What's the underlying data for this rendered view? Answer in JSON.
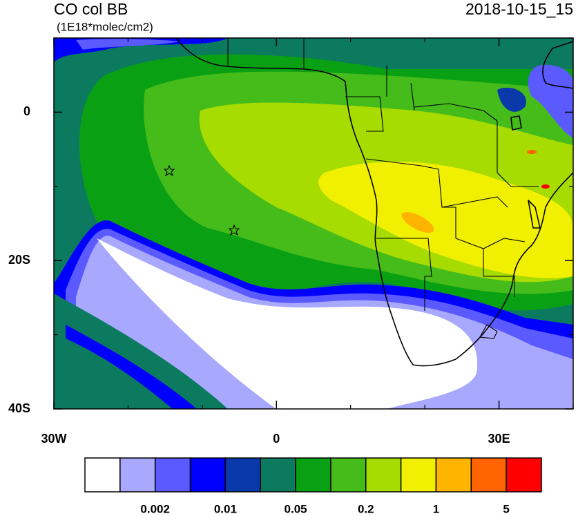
{
  "chart_data": {
    "type": "contour-map",
    "title": "CO col BB",
    "subtitle": "(1E18*molec/cm2)",
    "date": "2018-10-15_15",
    "xlim": [
      -30,
      40
    ],
    "ylim": [
      -40,
      10
    ],
    "xticks": [
      {
        "value": -30,
        "label": "30W"
      },
      0,
      {
        "value": 30,
        "label": "30E"
      }
    ],
    "yticks": [
      {
        "value": -40,
        "label": "40S"
      },
      {
        "value": -20,
        "label": "20S"
      },
      0
    ],
    "xminorticks": [
      -20,
      -10,
      10,
      20,
      40
    ],
    "yminorticks": [
      -30,
      -10,
      10
    ],
    "colorbar": {
      "colors": [
        "#ffffff",
        "#a8a8ff",
        "#5a5aff",
        "#0000ff",
        "#0a3aaa",
        "#0b7a5e",
        "#0aa014",
        "#46bc1a",
        "#a6dc00",
        "#f0f000",
        "#ffb400",
        "#ff6400",
        "#ff0000"
      ],
      "levels": [
        null,
        0.002,
        null,
        0.01,
        null,
        0.05,
        null,
        0.2,
        null,
        1,
        null,
        5
      ]
    }
  }
}
